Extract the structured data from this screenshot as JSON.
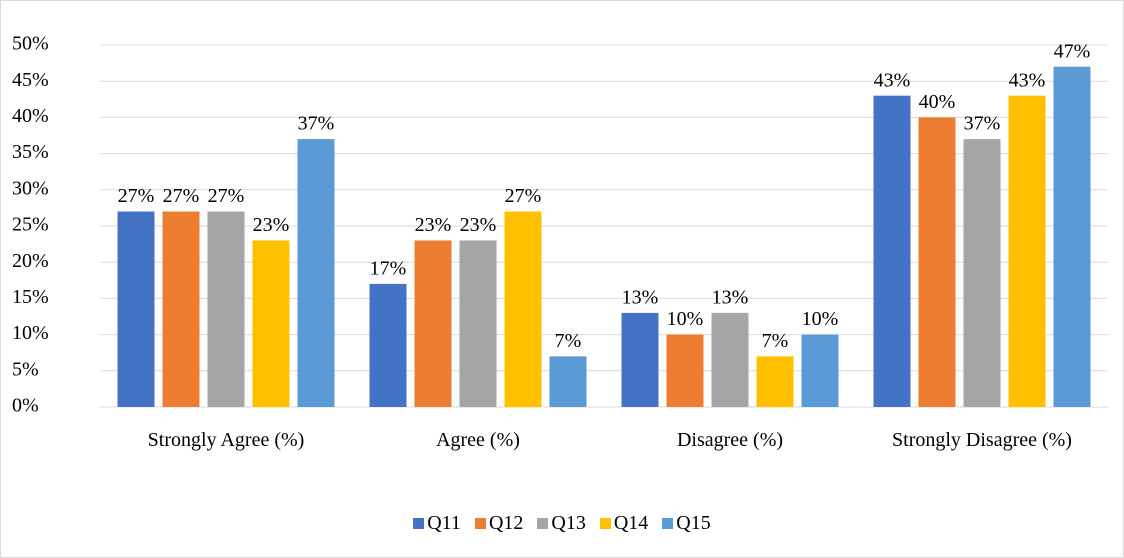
{
  "chart_data": {
    "type": "bar",
    "categories": [
      "Strongly Agree (%)",
      "Agree (%)",
      "Disagree (%)",
      "Strongly Disagree (%)"
    ],
    "series": [
      {
        "name": "Q11",
        "color": "#4472c4",
        "values": [
          27,
          17,
          13,
          43
        ],
        "value_labels": [
          "27%",
          "17%",
          "13%",
          "43%"
        ]
      },
      {
        "name": "Q12",
        "color": "#ed7d31",
        "values": [
          27,
          23,
          10,
          40
        ],
        "value_labels": [
          "27%",
          "23%",
          "10%",
          "40%"
        ]
      },
      {
        "name": "Q13",
        "color": "#a5a5a5",
        "values": [
          27,
          23,
          13,
          37
        ],
        "value_labels": [
          "27%",
          "23%",
          "13%",
          "37%"
        ]
      },
      {
        "name": "Q14",
        "color": "#ffc000",
        "values": [
          23,
          27,
          7,
          43
        ],
        "value_labels": [
          "23%",
          "27%",
          "7%",
          "43%"
        ]
      },
      {
        "name": "Q15",
        "color": "#5b9bd5",
        "values": [
          37,
          7,
          10,
          47
        ],
        "value_labels": [
          "37%",
          "7%",
          "10%",
          "47%"
        ]
      }
    ],
    "ylim": [
      0,
      50
    ],
    "yticks": [
      {
        "value": 0,
        "label": "0%"
      },
      {
        "value": 5,
        "label": "5%"
      },
      {
        "value": 10,
        "label": "10%"
      },
      {
        "value": 15,
        "label": "15%"
      },
      {
        "value": 20,
        "label": "20%"
      },
      {
        "value": 25,
        "label": "25%"
      },
      {
        "value": 30,
        "label": "30%"
      },
      {
        "value": 35,
        "label": "35%"
      },
      {
        "value": 40,
        "label": "40%"
      },
      {
        "value": 45,
        "label": "45%"
      },
      {
        "value": 50,
        "label": "50%"
      }
    ],
    "grid": true,
    "legend": "bottom"
  }
}
